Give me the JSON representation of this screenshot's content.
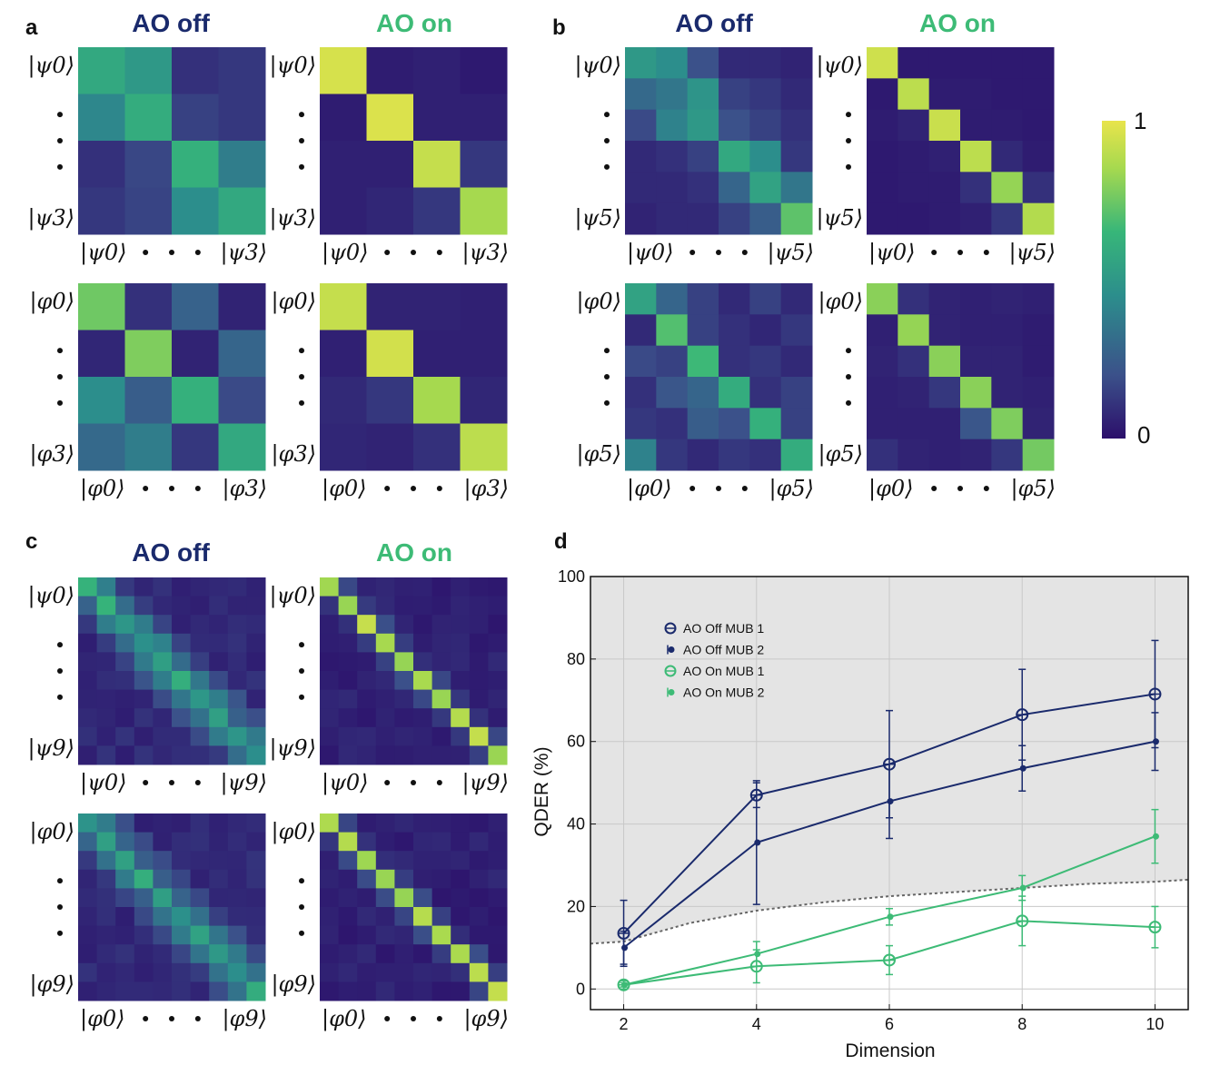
{
  "colors": {
    "off": "#1a2a6c",
    "on": "#3dbb76",
    "cmap": [
      "#2c0f6b",
      "#3b518a",
      "#2c8e8c",
      "#37b679",
      "#a6d94f",
      "#e8e44b"
    ]
  },
  "panels": [
    {
      "label": "a",
      "off_title": "AO off",
      "on_title": "AO on",
      "dim": 4,
      "rows": [
        {
          "basis": "ψ",
          "first": "0",
          "last": "3",
          "off": [
            [
              0.58,
              0.5,
              0.1,
              0.12
            ],
            [
              0.42,
              0.6,
              0.15,
              0.12
            ],
            [
              0.1,
              0.17,
              0.62,
              0.38
            ],
            [
              0.12,
              0.16,
              0.45,
              0.58
            ]
          ],
          "on": [
            [
              0.96,
              0.04,
              0.05,
              0.03
            ],
            [
              0.04,
              0.97,
              0.05,
              0.05
            ],
            [
              0.05,
              0.05,
              0.92,
              0.12
            ],
            [
              0.05,
              0.07,
              0.12,
              0.85
            ]
          ]
        },
        {
          "basis": "φ",
          "first": "0",
          "last": "3",
          "off": [
            [
              0.75,
              0.1,
              0.27,
              0.06
            ],
            [
              0.07,
              0.78,
              0.06,
              0.28
            ],
            [
              0.45,
              0.25,
              0.62,
              0.18
            ],
            [
              0.3,
              0.38,
              0.12,
              0.58
            ]
          ],
          "on": [
            [
              0.92,
              0.06,
              0.06,
              0.05
            ],
            [
              0.05,
              0.95,
              0.05,
              0.05
            ],
            [
              0.08,
              0.12,
              0.85,
              0.07
            ],
            [
              0.07,
              0.06,
              0.1,
              0.9
            ]
          ]
        }
      ]
    },
    {
      "label": "b",
      "off_title": "AO off",
      "on_title": "AO on",
      "dim": 6,
      "rows": [
        {
          "basis": "ψ",
          "first": "0",
          "last": "5",
          "off": [
            [
              0.5,
              0.45,
              0.2,
              0.08,
              0.08,
              0.06
            ],
            [
              0.3,
              0.35,
              0.48,
              0.15,
              0.12,
              0.08
            ],
            [
              0.18,
              0.4,
              0.5,
              0.2,
              0.15,
              0.1
            ],
            [
              0.08,
              0.1,
              0.15,
              0.58,
              0.45,
              0.12
            ],
            [
              0.08,
              0.08,
              0.1,
              0.28,
              0.55,
              0.35
            ],
            [
              0.06,
              0.08,
              0.08,
              0.15,
              0.25,
              0.72
            ]
          ],
          "on": [
            [
              0.94,
              0.03,
              0.03,
              0.03,
              0.03,
              0.03
            ],
            [
              0.03,
              0.9,
              0.04,
              0.04,
              0.03,
              0.03
            ],
            [
              0.04,
              0.06,
              0.93,
              0.04,
              0.04,
              0.03
            ],
            [
              0.03,
              0.04,
              0.05,
              0.9,
              0.08,
              0.04
            ],
            [
              0.03,
              0.04,
              0.04,
              0.1,
              0.82,
              0.1
            ],
            [
              0.03,
              0.03,
              0.04,
              0.05,
              0.12,
              0.88
            ]
          ]
        },
        {
          "basis": "φ",
          "first": "0",
          "last": "5",
          "off": [
            [
              0.55,
              0.28,
              0.15,
              0.08,
              0.15,
              0.08
            ],
            [
              0.08,
              0.7,
              0.15,
              0.1,
              0.07,
              0.12
            ],
            [
              0.18,
              0.15,
              0.66,
              0.1,
              0.12,
              0.08
            ],
            [
              0.1,
              0.22,
              0.28,
              0.6,
              0.1,
              0.15
            ],
            [
              0.12,
              0.1,
              0.25,
              0.2,
              0.62,
              0.15
            ],
            [
              0.4,
              0.12,
              0.08,
              0.12,
              0.1,
              0.6
            ]
          ],
          "on": [
            [
              0.8,
              0.1,
              0.06,
              0.05,
              0.06,
              0.05
            ],
            [
              0.05,
              0.82,
              0.06,
              0.05,
              0.05,
              0.04
            ],
            [
              0.06,
              0.1,
              0.8,
              0.06,
              0.06,
              0.04
            ],
            [
              0.05,
              0.06,
              0.12,
              0.8,
              0.06,
              0.05
            ],
            [
              0.05,
              0.05,
              0.05,
              0.22,
              0.78,
              0.06
            ],
            [
              0.1,
              0.06,
              0.05,
              0.06,
              0.12,
              0.76
            ]
          ]
        }
      ]
    },
    {
      "label": "c",
      "off_title": "AO off",
      "on_title": "AO on",
      "dim": 10,
      "rows": [
        {
          "basis": "ψ",
          "first": "0",
          "last": "9"
        },
        {
          "basis": "φ",
          "first": "0",
          "last": "9"
        }
      ]
    }
  ],
  "colorbar": {
    "max_label": "1",
    "min_label": "0"
  },
  "chart_data": {
    "label": "d",
    "type": "line",
    "xlabel": "Dimension",
    "ylabel": "QDER (%)",
    "xlim": [
      1.5,
      10.5
    ],
    "ylim": [
      -5,
      100
    ],
    "xticks": [
      2,
      4,
      6,
      8,
      10
    ],
    "yticks": [
      0,
      20,
      40,
      60,
      80,
      100
    ],
    "grid": true,
    "legend_position": "top-left",
    "series": [
      {
        "name": "AO Off MUB 1",
        "color": "off",
        "marker": "circle",
        "x": [
          2,
          4,
          6,
          8,
          10
        ],
        "y": [
          13.5,
          47,
          54.5,
          66.5,
          71.5
        ],
        "err": [
          8,
          3,
          13,
          11,
          13
        ]
      },
      {
        "name": "AO Off MUB 2",
        "color": "off",
        "marker": "dot",
        "x": [
          2,
          4,
          6,
          8,
          10
        ],
        "y": [
          10,
          35.5,
          45.5,
          53.5,
          60
        ],
        "err": [
          4,
          15,
          9,
          5.5,
          7
        ]
      },
      {
        "name": "AO On MUB 1",
        "color": "on",
        "marker": "circle",
        "x": [
          2,
          4,
          6,
          8,
          10
        ],
        "y": [
          1,
          5.5,
          7,
          16.5,
          15
        ],
        "err": [
          1,
          4,
          3.5,
          6,
          5
        ]
      },
      {
        "name": "AO On MUB 2",
        "color": "on",
        "marker": "dot",
        "x": [
          2,
          4,
          6,
          8,
          10
        ],
        "y": [
          1,
          8.5,
          17.5,
          24.5,
          37
        ],
        "err": [
          0.5,
          3,
          2,
          3,
          6.5
        ]
      }
    ],
    "bound": {
      "x": [
        1.5,
        2,
        3,
        4,
        5,
        6,
        7,
        8,
        9,
        10,
        10.5
      ],
      "y": [
        11,
        11.5,
        16,
        19,
        21,
        22.5,
        23.5,
        24.5,
        25.5,
        26,
        26.5
      ]
    }
  }
}
